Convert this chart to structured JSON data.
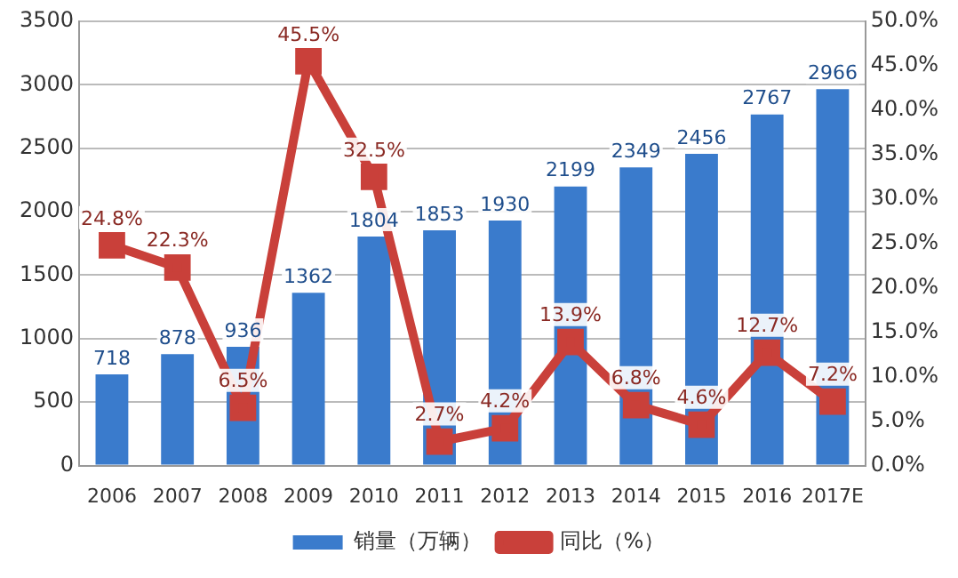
{
  "chart_data": {
    "type": "bar",
    "categories": [
      "2006",
      "2007",
      "2008",
      "2009",
      "2010",
      "2011",
      "2012",
      "2013",
      "2014",
      "2015",
      "2016",
      "2017E"
    ],
    "series": [
      {
        "name": "销量（万辆）",
        "color": "#3a7bcc",
        "values": [
          718,
          878,
          936,
          1362,
          1804,
          1853,
          1930,
          2199,
          2349,
          2456,
          2767,
          2966
        ],
        "value_labels": [
          "718",
          "878",
          "936",
          "1362",
          "1804",
          "1853",
          "1930",
          "2199",
          "2349",
          "2456",
          "2767",
          "2966"
        ]
      },
      {
        "name": "同比（%）",
        "type": "line",
        "axis": "y2",
        "color": "#c9403a",
        "values": [
          24.8,
          22.3,
          6.5,
          45.5,
          32.5,
          2.7,
          4.2,
          13.9,
          6.8,
          4.6,
          12.7,
          7.2
        ],
        "value_labels": [
          "24.8%",
          "22.3%",
          "6.5%",
          "45.5%",
          "32.5%",
          "2.7%",
          "4.2%",
          "13.9%",
          "6.8%",
          "4.6%",
          "12.7%",
          "7.2%"
        ]
      }
    ],
    "ylim": [
      0,
      3500
    ],
    "yticks": [
      0,
      500,
      1000,
      1500,
      2000,
      2500,
      3000,
      3500
    ],
    "y2lim": [
      0,
      50
    ],
    "y2ticks": [
      {
        "value": 0,
        "label": "0.0%"
      },
      {
        "value": 5,
        "label": "5.0%"
      },
      {
        "value": 10,
        "label": "10.0%"
      },
      {
        "value": 15,
        "label": "15.0%"
      },
      {
        "value": 20,
        "label": "20.0%"
      },
      {
        "value": 25,
        "label": "25.0%"
      },
      {
        "value": 30,
        "label": "30.0%"
      },
      {
        "value": 35,
        "label": "35.0%"
      },
      {
        "value": 40,
        "label": "40.0%"
      },
      {
        "value": 45,
        "label": "45.0%"
      },
      {
        "value": 50,
        "label": "50.0%"
      }
    ],
    "grid": "y",
    "legend": "bottom",
    "marker": "square",
    "line_style": "solid"
  }
}
